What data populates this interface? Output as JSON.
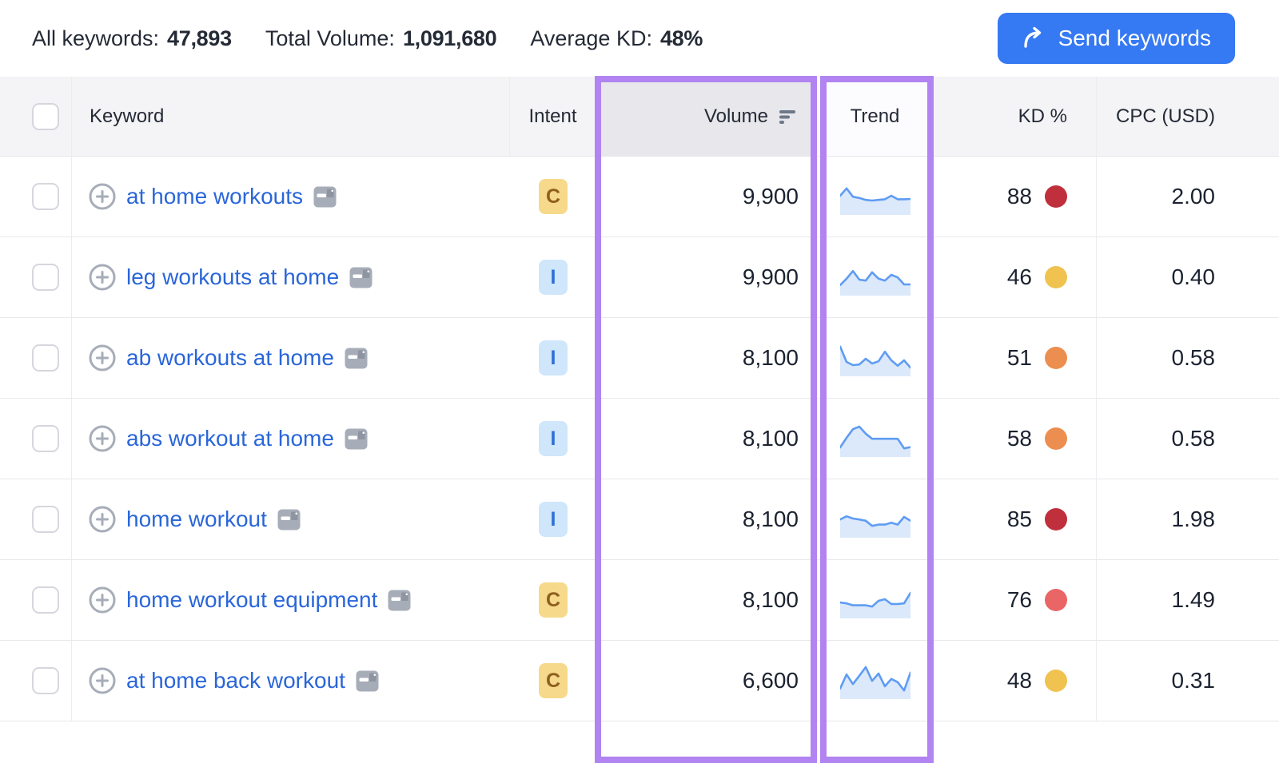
{
  "stats": {
    "all_keywords_label": "All keywords:",
    "all_keywords_value": "47,893",
    "total_volume_label": "Total Volume:",
    "total_volume_value": "1,091,680",
    "average_kd_label": "Average KD:",
    "average_kd_value": "48%"
  },
  "send_button": {
    "label": "Send keywords",
    "color": "#3579f3",
    "icon": "forward-arrow-icon"
  },
  "table": {
    "headers": {
      "keyword": "Keyword",
      "intent": "Intent",
      "volume": "Volume",
      "trend": "Trend",
      "kd": "KD %",
      "cpc": "CPC (USD)"
    },
    "sorted_column": "volume",
    "sort_icon": "sort-descending-bars",
    "rows": [
      {
        "keyword": "at home workouts",
        "intent": "C",
        "volume": "9,900",
        "kd": "88",
        "kd_color": "#bf303c",
        "cpc": "2.00",
        "trend": [
          55,
          78,
          52,
          48,
          42,
          40,
          42,
          44,
          55,
          44,
          44,
          45
        ]
      },
      {
        "keyword": "leg workouts at home",
        "intent": "I",
        "volume": "9,900",
        "kd": "46",
        "kd_color": "#f0c24f",
        "cpc": "0.40",
        "trend": [
          28,
          48,
          72,
          45,
          42,
          68,
          48,
          42,
          60,
          52,
          30,
          30
        ]
      },
      {
        "keyword": "ab workouts at home",
        "intent": "I",
        "volume": "8,100",
        "kd": "51",
        "kd_color": "#ec8e4f",
        "cpc": "0.58",
        "trend": [
          88,
          40,
          30,
          32,
          50,
          35,
          42,
          72,
          45,
          28,
          45,
          22
        ]
      },
      {
        "keyword": "abs workout at home",
        "intent": "I",
        "volume": "8,100",
        "kd": "58",
        "kd_color": "#ec8e4f",
        "cpc": "0.58",
        "trend": [
          25,
          55,
          82,
          90,
          68,
          52,
          52,
          52,
          52,
          52,
          22,
          26
        ]
      },
      {
        "keyword": "home workout",
        "intent": "I",
        "volume": "8,100",
        "kd": "85",
        "kd_color": "#bf303c",
        "cpc": "1.98",
        "trend": [
          52,
          62,
          55,
          52,
          48,
          32,
          36,
          36,
          42,
          36,
          60,
          48
        ]
      },
      {
        "keyword": "home workout equipment",
        "intent": "C",
        "volume": "8,100",
        "kd": "76",
        "kd_color": "#ea6565",
        "cpc": "1.49",
        "trend": [
          45,
          42,
          36,
          36,
          36,
          32,
          50,
          55,
          40,
          40,
          42,
          75
        ]
      },
      {
        "keyword": "at home back workout",
        "intent": "C",
        "volume": "6,600",
        "kd": "48",
        "kd_color": "#f0c24f",
        "cpc": "0.31",
        "trend": [
          28,
          72,
          42,
          68,
          95,
          52,
          75,
          35,
          58,
          48,
          22,
          78
        ]
      }
    ]
  },
  "highlight": {
    "color": "#b184f1",
    "highlighted_columns": [
      "Volume",
      "Trend"
    ]
  },
  "colors": {
    "link_blue": "#2a66d9",
    "sparkline_line": "#5f9cf3",
    "sparkline_fill": "#dbe9fb",
    "intent_c_bg": "#f6d98a",
    "intent_c_text": "#8f5f1f",
    "intent_i_bg": "#cfe6fb",
    "intent_i_text": "#2f6fd6",
    "header_bg": "#f4f4f6",
    "sorted_header_bg": "#e7e7ec"
  }
}
